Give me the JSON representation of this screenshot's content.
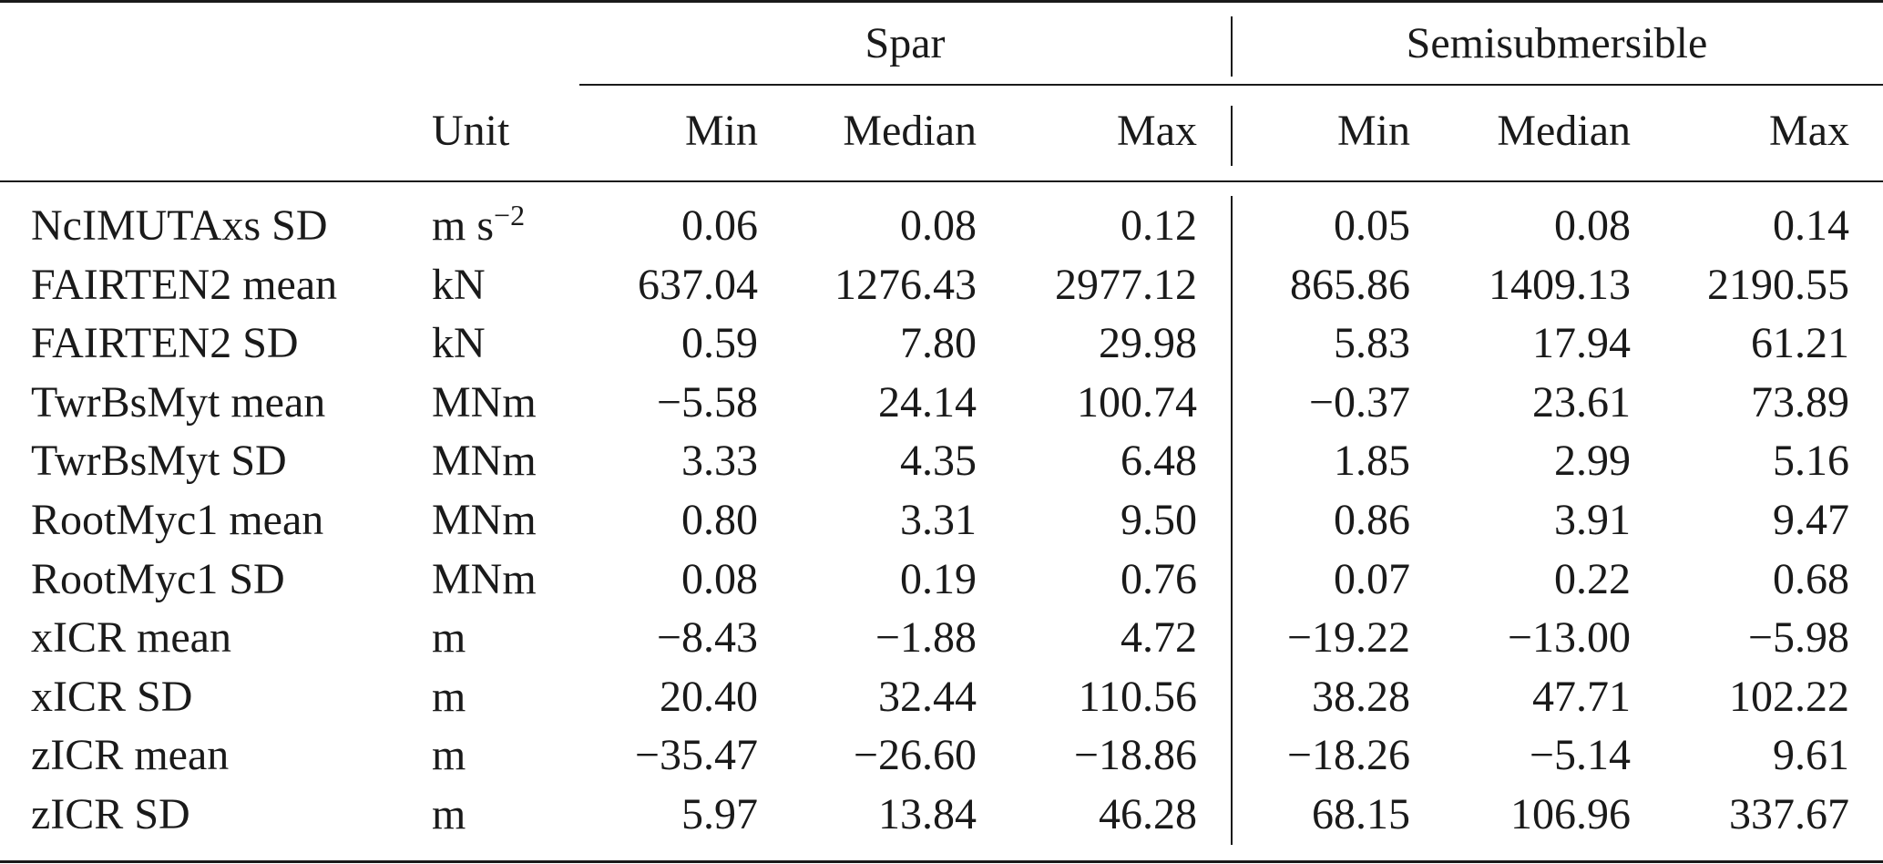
{
  "table": {
    "group_headers": [
      "Spar",
      "Semisubmersible"
    ],
    "unit_header": "Unit",
    "sub_headers": [
      "Min",
      "Median",
      "Max",
      "Min",
      "Median",
      "Max"
    ],
    "rows": [
      {
        "name": "NcIMUTAxs SD",
        "unit": "m s",
        "unit_sup": "−2",
        "values": [
          "0.06",
          "0.08",
          "0.12",
          "0.05",
          "0.08",
          "0.14"
        ]
      },
      {
        "name": "FAIRTEN2 mean",
        "unit": "kN",
        "unit_sup": "",
        "values": [
          "637.04",
          "1276.43",
          "2977.12",
          "865.86",
          "1409.13",
          "2190.55"
        ]
      },
      {
        "name": "FAIRTEN2 SD",
        "unit": "kN",
        "unit_sup": "",
        "values": [
          "0.59",
          "7.80",
          "29.98",
          "5.83",
          "17.94",
          "61.21"
        ]
      },
      {
        "name": "TwrBsMyt mean",
        "unit": "MNm",
        "unit_sup": "",
        "values": [
          "−5.58",
          "24.14",
          "100.74",
          "−0.37",
          "23.61",
          "73.89"
        ]
      },
      {
        "name": "TwrBsMyt SD",
        "unit": "MNm",
        "unit_sup": "",
        "values": [
          "3.33",
          "4.35",
          "6.48",
          "1.85",
          "2.99",
          "5.16"
        ]
      },
      {
        "name": "RootMyc1 mean",
        "unit": "MNm",
        "unit_sup": "",
        "values": [
          "0.80",
          "3.31",
          "9.50",
          "0.86",
          "3.91",
          "9.47"
        ]
      },
      {
        "name": "RootMyc1 SD",
        "unit": "MNm",
        "unit_sup": "",
        "values": [
          "0.08",
          "0.19",
          "0.76",
          "0.07",
          "0.22",
          "0.68"
        ]
      },
      {
        "name": "xICR mean",
        "unit": "m",
        "unit_sup": "",
        "values": [
          "−8.43",
          "−1.88",
          "4.72",
          "−19.22",
          "−13.00",
          "−5.98"
        ]
      },
      {
        "name": "xICR SD",
        "unit": "m",
        "unit_sup": "",
        "values": [
          "20.40",
          "32.44",
          "110.56",
          "38.28",
          "47.71",
          "102.22"
        ]
      },
      {
        "name": "zICR mean",
        "unit": "m",
        "unit_sup": "",
        "values": [
          "−35.47",
          "−26.60",
          "−18.86",
          "−18.26",
          "−5.14",
          "9.61"
        ]
      },
      {
        "name": "zICR SD",
        "unit": "m",
        "unit_sup": "",
        "values": [
          "5.97",
          "13.84",
          "46.28",
          "68.15",
          "106.96",
          "337.67"
        ]
      }
    ]
  }
}
